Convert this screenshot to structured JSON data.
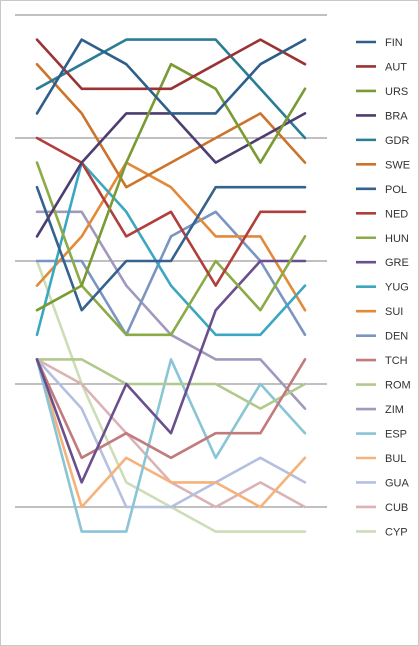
{
  "chart_data": {
    "type": "line",
    "title": "",
    "xlabel": "",
    "ylabel": "",
    "x": [
      1,
      2,
      3,
      4,
      5,
      6,
      7
    ],
    "ylim": [
      0,
      24
    ],
    "y_inverted": true,
    "grid": true,
    "legend_position": "right",
    "series": [
      {
        "name": "FIN",
        "color": "#2e5f8a",
        "values": [
          4,
          1,
          2,
          4,
          4,
          2,
          1
        ]
      },
      {
        "name": "AUT",
        "color": "#9b3234",
        "values": [
          1,
          3,
          3,
          3,
          2,
          1,
          2
        ]
      },
      {
        "name": "URS",
        "color": "#7a9a33",
        "values": [
          12,
          11,
          6,
          2,
          3,
          6,
          3
        ]
      },
      {
        "name": "BRA",
        "color": "#4d3d70",
        "values": [
          9,
          6,
          4,
          4,
          6,
          5,
          4
        ]
      },
      {
        "name": "GDR",
        "color": "#2a7d95",
        "values": [
          3,
          2,
          1,
          1,
          1,
          3,
          5
        ]
      },
      {
        "name": "SWE",
        "color": "#cc742b",
        "values": [
          2,
          4,
          7,
          6,
          5,
          4,
          6
        ]
      },
      {
        "name": "POL",
        "color": "#35628f",
        "values": [
          7,
          12,
          10,
          10,
          7,
          7,
          7
        ]
      },
      {
        "name": "NED",
        "color": "#b03f3c",
        "values": [
          5,
          6,
          9,
          8,
          11,
          8,
          8
        ]
      },
      {
        "name": "HUN",
        "color": "#8aab46",
        "values": [
          6,
          11,
          13,
          13,
          10,
          12,
          9
        ]
      },
      {
        "name": "GRE",
        "color": "#6a4f8e",
        "values": [
          14,
          19,
          15,
          17,
          12,
          10,
          10
        ]
      },
      {
        "name": "YUG",
        "color": "#3ba7c0",
        "values": [
          13,
          6,
          8,
          11,
          13,
          13,
          11
        ]
      },
      {
        "name": "SUI",
        "color": "#e38a3a",
        "values": [
          11,
          9,
          6,
          7,
          9,
          9,
          12
        ]
      },
      {
        "name": "DEN",
        "color": "#7b95c3",
        "values": [
          10,
          10,
          13,
          9,
          8,
          10,
          13
        ]
      },
      {
        "name": "TCH",
        "color": "#c27b7c",
        "values": [
          14,
          18,
          17,
          18,
          17,
          17,
          14
        ]
      },
      {
        "name": "ROM",
        "color": "#b2c98d",
        "values": [
          14,
          14,
          15,
          15,
          15,
          16,
          15
        ]
      },
      {
        "name": "ZIM",
        "color": "#a199bd",
        "values": [
          8,
          8,
          11,
          13,
          14,
          14,
          16
        ]
      },
      {
        "name": "ESP",
        "color": "#89c5d5",
        "values": [
          14,
          21,
          21,
          14,
          18,
          15,
          17
        ]
      },
      {
        "name": "BUL",
        "color": "#f5b27a",
        "values": [
          14,
          20,
          18,
          19,
          19,
          20,
          18
        ]
      },
      {
        "name": "GUA",
        "color": "#b5bfe0",
        "values": [
          14,
          16,
          20,
          20,
          19,
          18,
          19
        ]
      },
      {
        "name": "CUB",
        "color": "#dcb3b4",
        "values": [
          14,
          15,
          17,
          19,
          20,
          19,
          20
        ]
      },
      {
        "name": "CYP",
        "color": "#cdddb8",
        "values": [
          10,
          15,
          19,
          20,
          21,
          21,
          21
        ]
      }
    ]
  }
}
